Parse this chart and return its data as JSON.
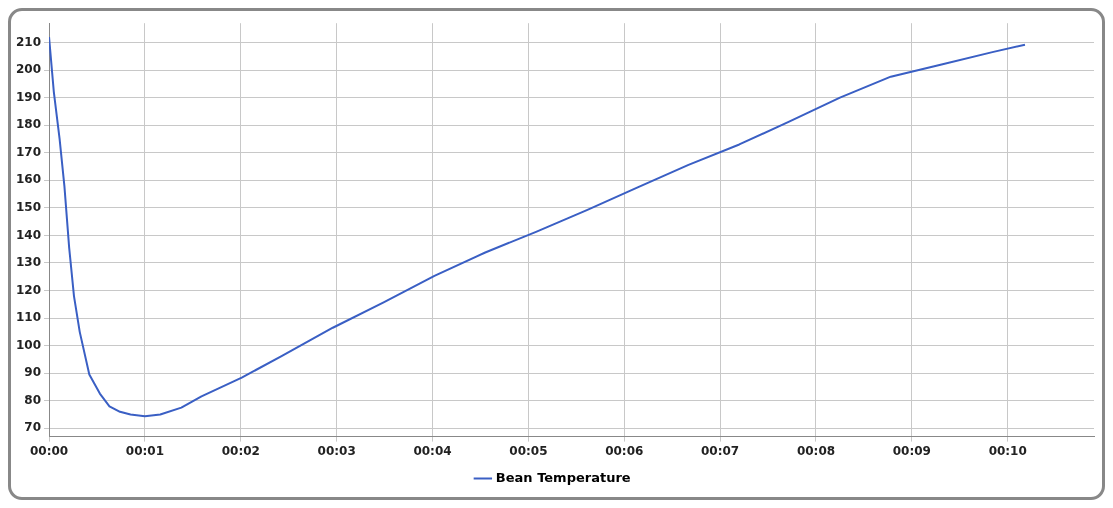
{
  "chart_data": {
    "type": "line",
    "x": [
      0,
      0.05,
      0.11,
      0.16,
      0.21,
      0.26,
      0.32,
      0.42,
      0.53,
      0.63,
      0.74,
      0.85,
      1.0,
      1.16,
      1.38,
      1.59,
      2.01,
      2.43,
      2.96,
      3.49,
      4.02,
      4.55,
      5.08,
      5.61,
      6.14,
      6.67,
      7.2,
      7.72,
      8.25,
      8.78,
      9.31,
      9.84,
      10.18
    ],
    "series": [
      {
        "name": "Bean Temperature",
        "color": "#3a5fc4",
        "values": [
          212,
          192,
          175,
          158,
          135.5,
          118,
          105,
          89.5,
          82.6,
          78,
          76,
          75,
          74.4,
          75,
          77.5,
          81.6,
          88.4,
          96.3,
          106.5,
          115.7,
          125.3,
          133.8,
          141.3,
          149.2,
          157.4,
          165.6,
          173,
          181.3,
          190,
          197.6,
          202,
          206.5,
          209.2
        ]
      }
    ],
    "xlim": [
      0,
      10.9
    ],
    "xticks": [
      {
        "value": 0,
        "label": "00:00"
      },
      {
        "value": 1,
        "label": "00:01"
      },
      {
        "value": 2,
        "label": "00:02"
      },
      {
        "value": 3,
        "label": "00:03"
      },
      {
        "value": 4,
        "label": "00:04"
      },
      {
        "value": 5,
        "label": "00:05"
      },
      {
        "value": 6,
        "label": "00:06"
      },
      {
        "value": 7,
        "label": "00:07"
      },
      {
        "value": 8,
        "label": "00:08"
      },
      {
        "value": 9,
        "label": "00:09"
      },
      {
        "value": 10,
        "label": "00:10"
      }
    ],
    "ylim": [
      67,
      217
    ],
    "yticks": [
      70,
      80,
      90,
      100,
      110,
      120,
      130,
      140,
      150,
      160,
      170,
      180,
      190,
      200,
      210
    ],
    "grid": true,
    "legend": "bottom",
    "marker": "none",
    "line_style": "solid"
  }
}
